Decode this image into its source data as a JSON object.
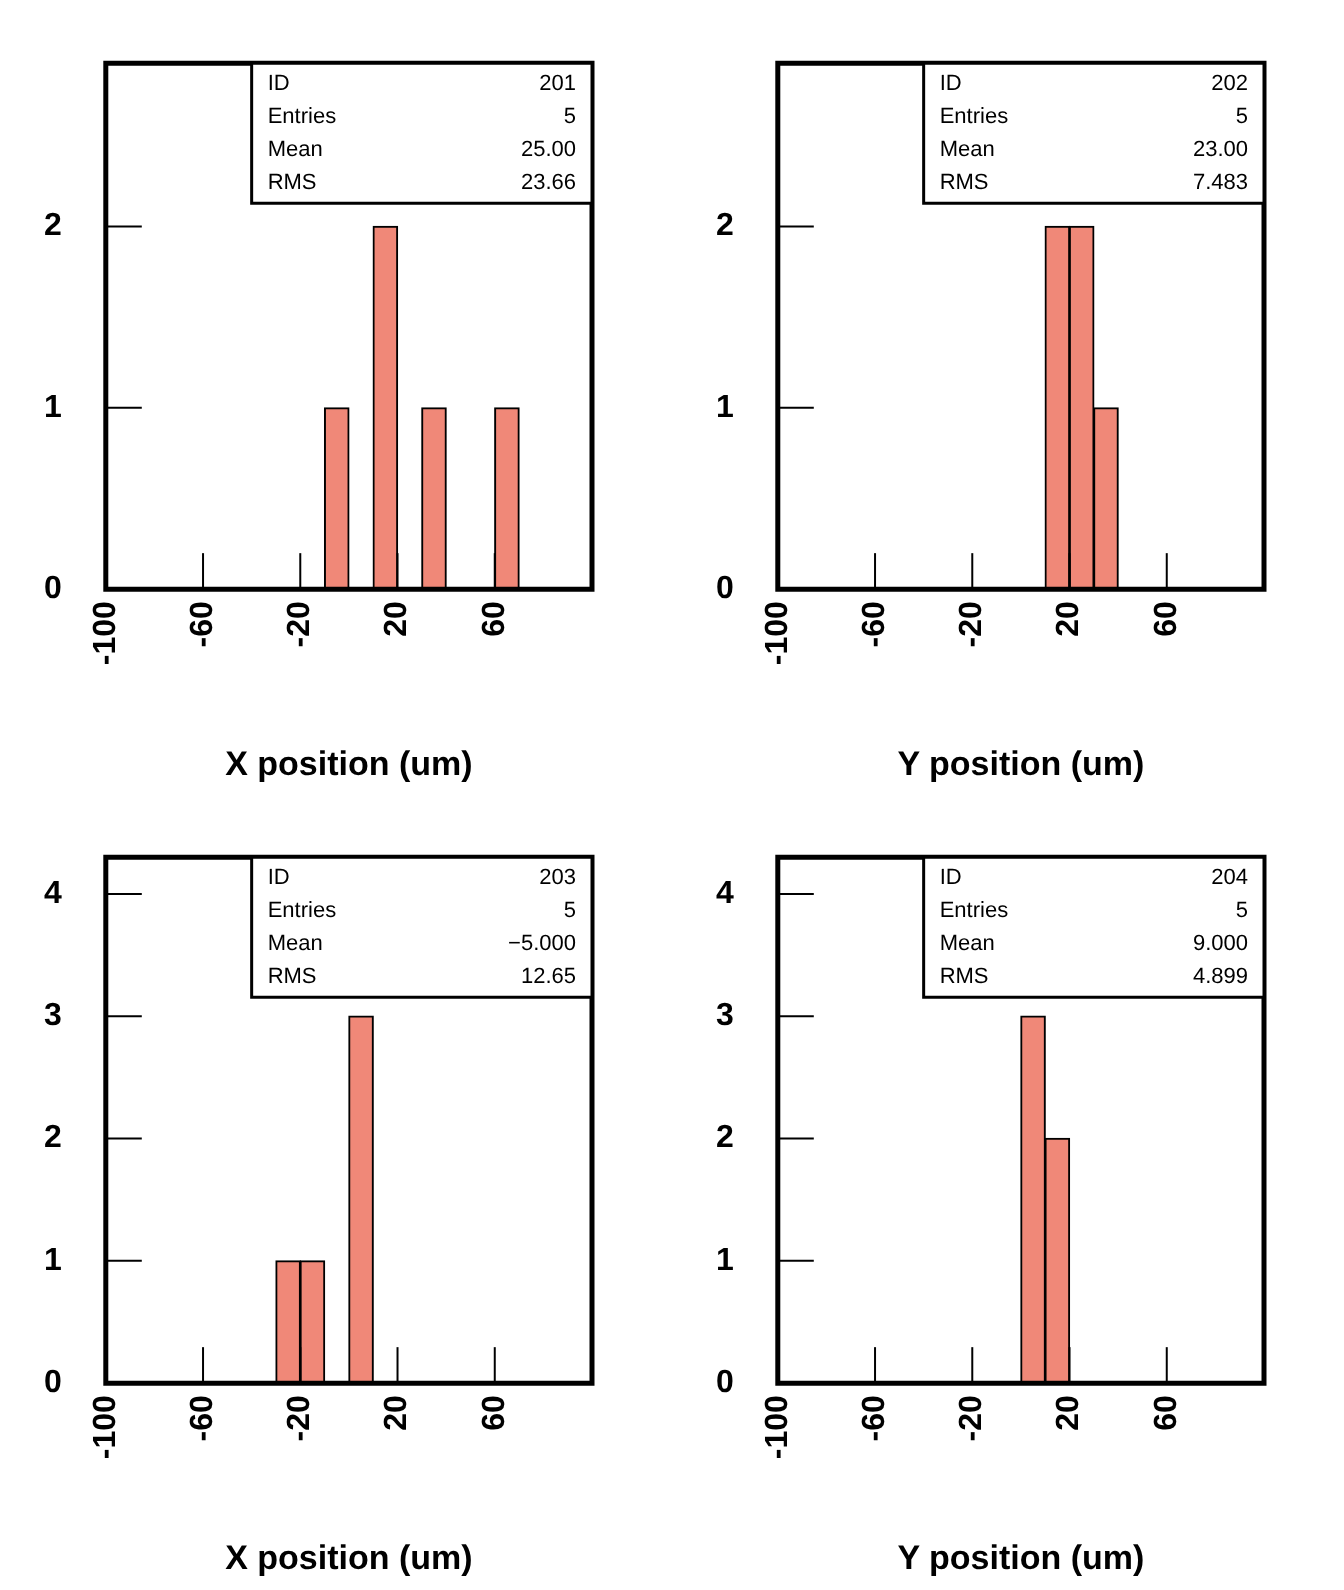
{
  "chart_data": [
    {
      "type": "histogram",
      "bins": [
        -100,
        -90,
        -80,
        -70,
        -60,
        -50,
        -40,
        -30,
        -20,
        -10,
        0,
        10,
        20,
        30,
        40,
        50,
        60,
        70,
        80,
        90,
        100
      ],
      "values": [
        0,
        0,
        0,
        0,
        0,
        0,
        0,
        0,
        0,
        1,
        0,
        2,
        0,
        1,
        0,
        0,
        1,
        0,
        0,
        0
      ],
      "color": "#f08878",
      "xlim": [
        -100,
        100
      ],
      "xticks": [
        -100,
        -60,
        -20,
        20,
        60
      ],
      "ylim": [
        0,
        2.9
      ],
      "yticks": [
        0,
        1,
        2
      ],
      "xlabel": "X position (um)",
      "annotations": [
        "ID",
        "201",
        "Entries",
        "5",
        "Mean",
        "25.00",
        "RMS",
        "23.66"
      ]
    },
    {
      "type": "histogram",
      "bins": [
        -100,
        -90,
        -80,
        -70,
        -60,
        -50,
        -40,
        -30,
        -20,
        -10,
        0,
        10,
        20,
        30,
        40,
        50,
        60,
        70,
        80,
        90,
        100
      ],
      "values": [
        0,
        0,
        0,
        0,
        0,
        0,
        0,
        0,
        0,
        0,
        0,
        2,
        2,
        1,
        0,
        0,
        0,
        0,
        0,
        0
      ],
      "color": "#f08878",
      "xlim": [
        -100,
        100
      ],
      "xticks": [
        -100,
        -60,
        -20,
        20,
        60
      ],
      "ylim": [
        0,
        2.9
      ],
      "yticks": [
        0,
        1,
        2
      ],
      "xlabel": "Y position (um)",
      "annotations": [
        "ID",
        "202",
        "Entries",
        "5",
        "Mean",
        "23.00",
        "RMS",
        "7.483"
      ]
    },
    {
      "type": "histogram",
      "bins": [
        -100,
        -90,
        -80,
        -70,
        -60,
        -50,
        -40,
        -30,
        -20,
        -10,
        0,
        10,
        20,
        30,
        40,
        50,
        60,
        70,
        80,
        90,
        100
      ],
      "values": [
        0,
        0,
        0,
        0,
        0,
        0,
        0,
        1,
        1,
        0,
        3,
        0,
        0,
        0,
        0,
        0,
        0,
        0,
        0,
        0
      ],
      "color": "#f08878",
      "xlim": [
        -100,
        100
      ],
      "xticks": [
        -100,
        -60,
        -20,
        20,
        60
      ],
      "ylim": [
        0,
        4.3
      ],
      "yticks": [
        0,
        1,
        2,
        3,
        4
      ],
      "xlabel": "X position (um)",
      "annotations": [
        "ID",
        "203",
        "Entries",
        "5",
        "Mean",
        "−5.000",
        "RMS",
        "12.65"
      ]
    },
    {
      "type": "histogram",
      "bins": [
        -100,
        -90,
        -80,
        -70,
        -60,
        -50,
        -40,
        -30,
        -20,
        -10,
        0,
        10,
        20,
        30,
        40,
        50,
        60,
        70,
        80,
        90,
        100
      ],
      "values": [
        0,
        0,
        0,
        0,
        0,
        0,
        0,
        0,
        0,
        0,
        3,
        2,
        0,
        0,
        0,
        0,
        0,
        0,
        0,
        0
      ],
      "color": "#f08878",
      "xlim": [
        -100,
        100
      ],
      "xticks": [
        -100,
        -60,
        -20,
        20,
        60
      ],
      "ylim": [
        0,
        4.3
      ],
      "yticks": [
        0,
        1,
        2,
        3,
        4
      ],
      "xlabel": "Y position (um)",
      "annotations": [
        "ID",
        "204",
        "Entries",
        "5",
        "Mean",
        "9.000",
        "RMS",
        "4.899"
      ]
    }
  ]
}
